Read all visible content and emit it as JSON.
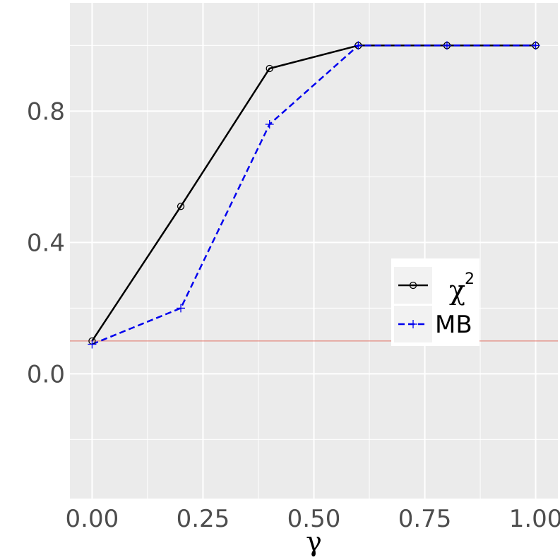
{
  "chart_data": {
    "type": "line",
    "title": "",
    "xlabel": "γ",
    "ylabel": "",
    "x": [
      0.0,
      0.2,
      0.4,
      0.6,
      0.8,
      1.0
    ],
    "xlim": [
      -0.05,
      1.05
    ],
    "ylim": [
      -0.38,
      1.13
    ],
    "x_ticks": [
      0.0,
      0.25,
      0.5,
      0.75,
      1.0
    ],
    "x_tick_labels": [
      "0.00",
      "0.25",
      "0.50",
      "0.75",
      "1.00"
    ],
    "y_ticks": [
      0.0,
      0.4,
      0.8
    ],
    "y_tick_labels": [
      "0.0",
      "0.4",
      "0.8"
    ],
    "grid": true,
    "reference_line": {
      "y": 0.1,
      "color": "#e06c60"
    },
    "legend_placement": "right",
    "series": [
      {
        "name": "χ",
        "name_superscript": "2",
        "values": [
          0.1,
          0.51,
          0.93,
          1.0,
          1.0,
          1.0
        ],
        "color": "#000000",
        "dash": "solid",
        "marker": "circle"
      },
      {
        "name": "MB",
        "values": [
          0.09,
          0.2,
          0.76,
          1.0,
          1.0,
          1.0
        ],
        "color": "#0000ee",
        "dash": "dashed",
        "marker": "plus"
      }
    ],
    "background": "#ebebeb",
    "grid_color": "#ffffff"
  }
}
